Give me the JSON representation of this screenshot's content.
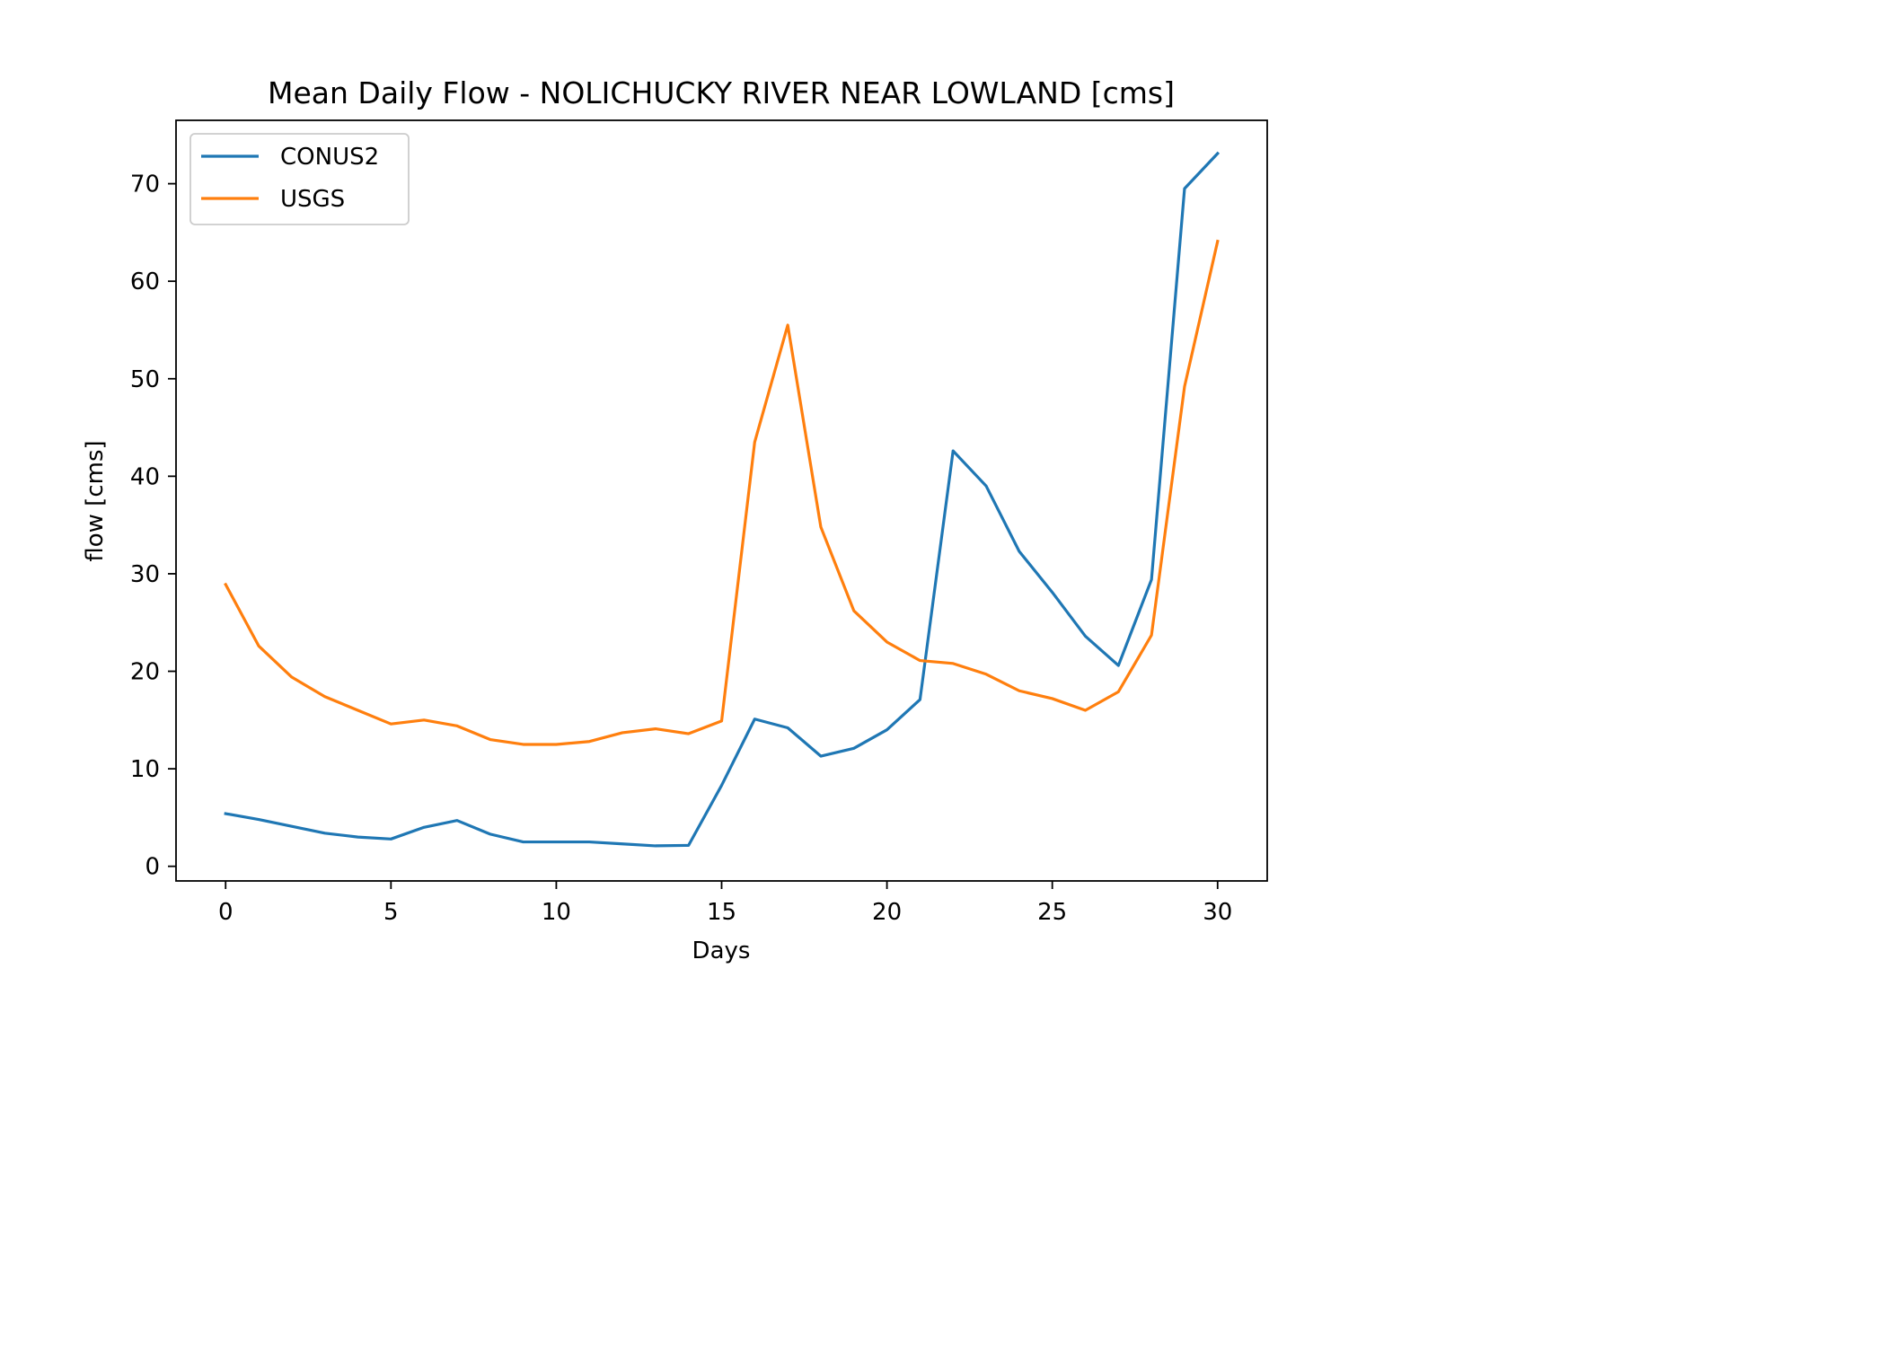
{
  "chart_data": {
    "type": "line",
    "title": "Mean Daily Flow - NOLICHUCKY RIVER NEAR LOWLAND [cms]",
    "xlabel": "Days",
    "ylabel": "flow [cms]",
    "xlim": [
      -1.5,
      31.5
    ],
    "ylim": [
      -1.5,
      76.5
    ],
    "xticks": [
      0,
      5,
      10,
      15,
      20,
      25,
      30
    ],
    "yticks": [
      0,
      10,
      20,
      30,
      40,
      50,
      60,
      70
    ],
    "grid": false,
    "legend_position": "upper-left",
    "x": [
      0,
      1,
      2,
      3,
      4,
      5,
      6,
      7,
      8,
      9,
      10,
      11,
      12,
      13,
      14,
      15,
      16,
      17,
      18,
      19,
      20,
      21,
      22,
      23,
      24,
      25,
      26,
      27,
      28,
      29,
      30
    ],
    "series": [
      {
        "name": "CONUS2",
        "color": "#1f77b4",
        "values": [
          5.4,
          4.8,
          4.1,
          3.4,
          3.0,
          2.8,
          4.0,
          4.7,
          3.3,
          2.5,
          2.5,
          2.5,
          2.3,
          2.1,
          2.15,
          8.3,
          15.1,
          14.2,
          11.3,
          12.1,
          14.0,
          17.1,
          42.6,
          39.0,
          32.3,
          28.1,
          23.6,
          20.6,
          29.4,
          69.5,
          73.1
        ]
      },
      {
        "name": "USGS",
        "color": "#ff7f0e",
        "values": [
          28.9,
          22.6,
          19.4,
          17.4,
          16.0,
          14.6,
          15.0,
          14.4,
          13.0,
          12.5,
          12.5,
          12.8,
          13.7,
          14.1,
          13.6,
          14.9,
          43.5,
          55.5,
          34.8,
          26.2,
          23.0,
          21.1,
          20.8,
          19.7,
          18.0,
          17.2,
          16.0,
          17.9,
          23.7,
          49.2,
          64.1
        ]
      }
    ]
  }
}
